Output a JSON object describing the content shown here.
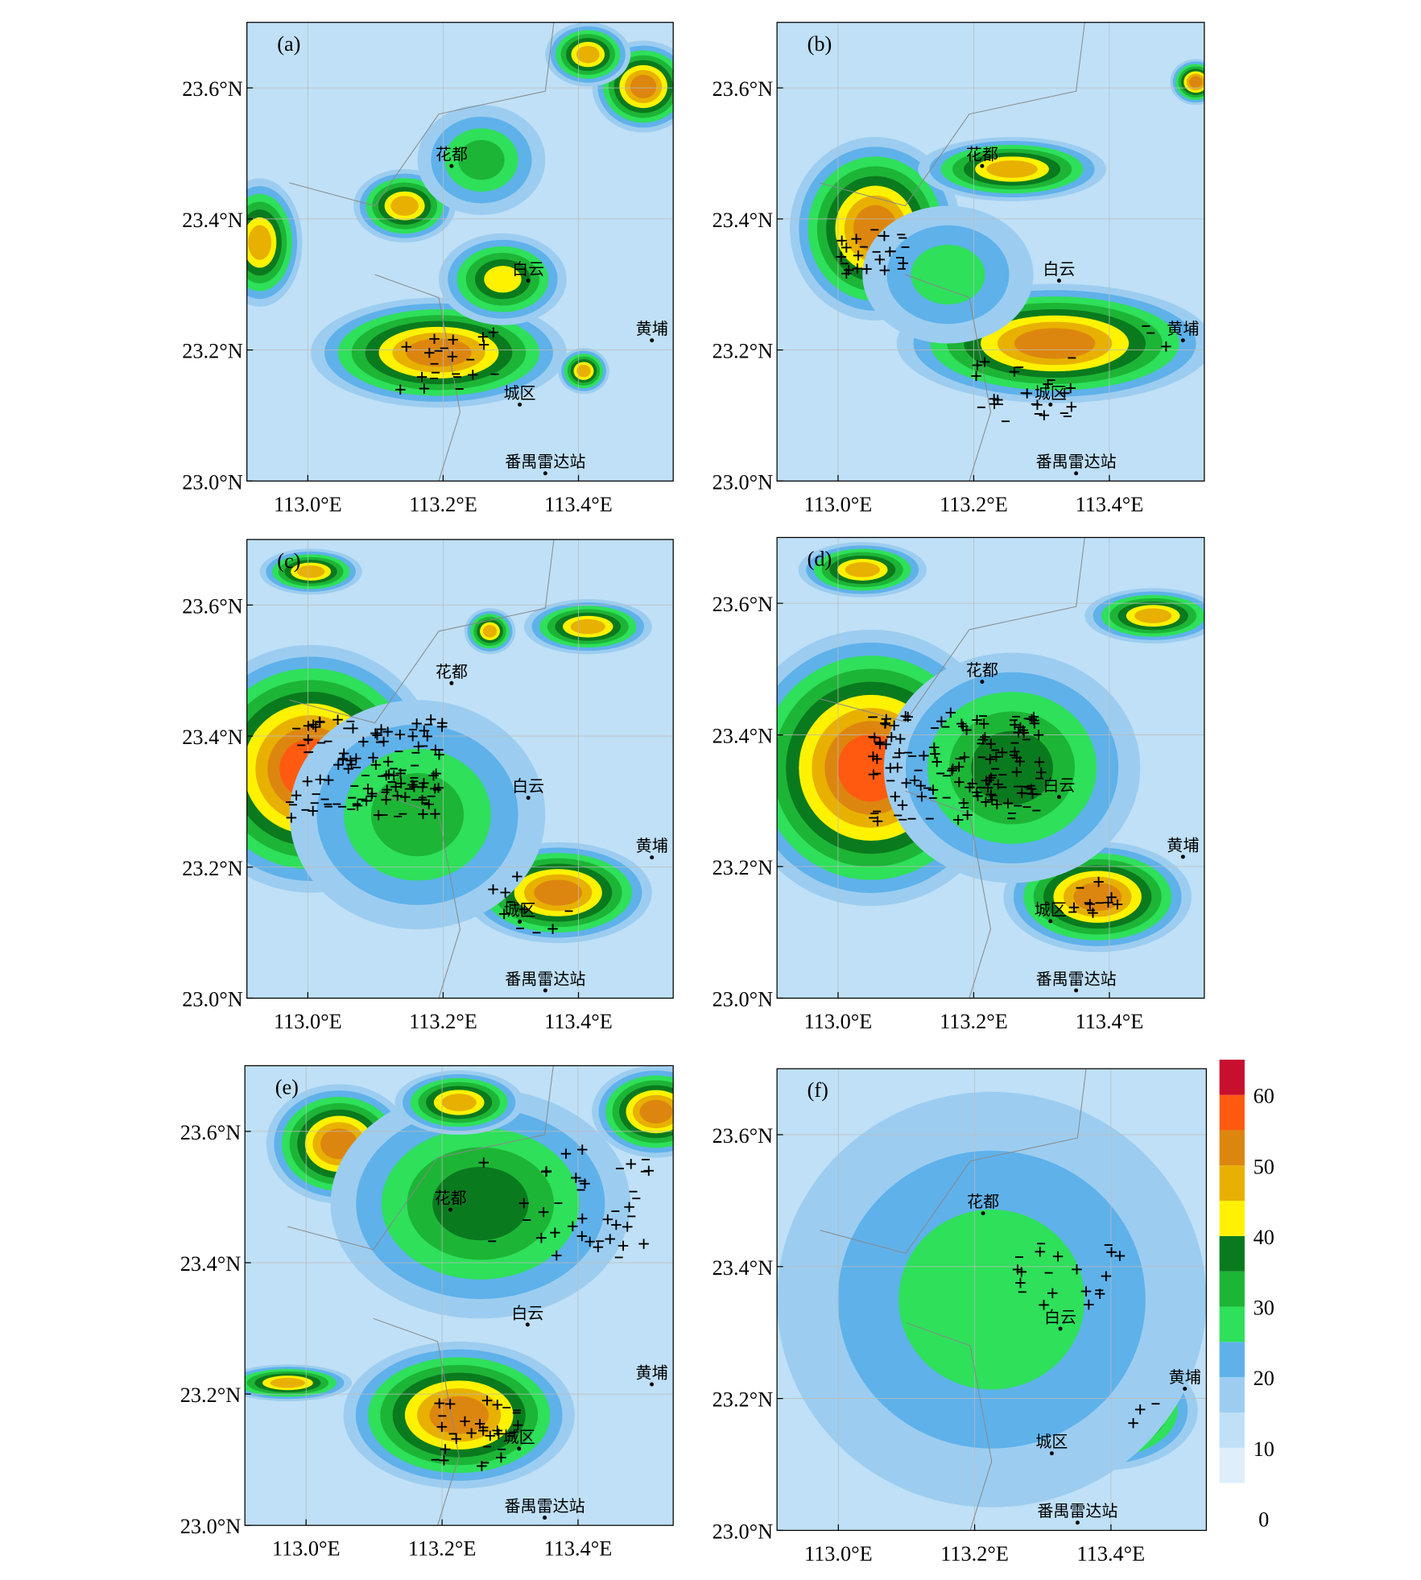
{
  "panels": [
    {
      "label": "(a)"
    },
    {
      "label": "(b)"
    },
    {
      "label": "(c)"
    },
    {
      "label": "(d)"
    },
    {
      "label": "(e)"
    },
    {
      "label": "(f)"
    }
  ],
  "axes": {
    "xlim": [
      112.91,
      113.54
    ],
    "ylim": [
      23.0,
      23.7
    ],
    "xticks": [
      {
        "value": 113.0,
        "label": "113.0°E"
      },
      {
        "value": 113.2,
        "label": "113.2°E"
      },
      {
        "value": 113.4,
        "label": "113.4°E"
      }
    ],
    "yticks": [
      {
        "value": 23.0,
        "label": "23.0°N"
      },
      {
        "value": 23.2,
        "label": "23.2°N"
      },
      {
        "value": 23.4,
        "label": "23.4°N"
      },
      {
        "value": 23.6,
        "label": "23.6°N"
      }
    ]
  },
  "places": [
    "花都",
    "白云",
    "黄埔",
    "城区",
    "番禺雷达站"
  ],
  "colorbar": {
    "levels": [
      5,
      10,
      15,
      20,
      25,
      30,
      35,
      40,
      45,
      50,
      55,
      60,
      65
    ],
    "colors": [
      "#deeffb",
      "#bfe0f6",
      "#9ccdf0",
      "#5fb1ea",
      "#2ee05a",
      "#1db536",
      "#0a7a1e",
      "#fff200",
      "#e8b000",
      "#dd860f",
      "#ff5a10",
      "#c8102e",
      "#9b5cf0"
    ],
    "ticks": [
      0,
      10,
      20,
      30,
      40,
      50,
      60
    ]
  }
}
